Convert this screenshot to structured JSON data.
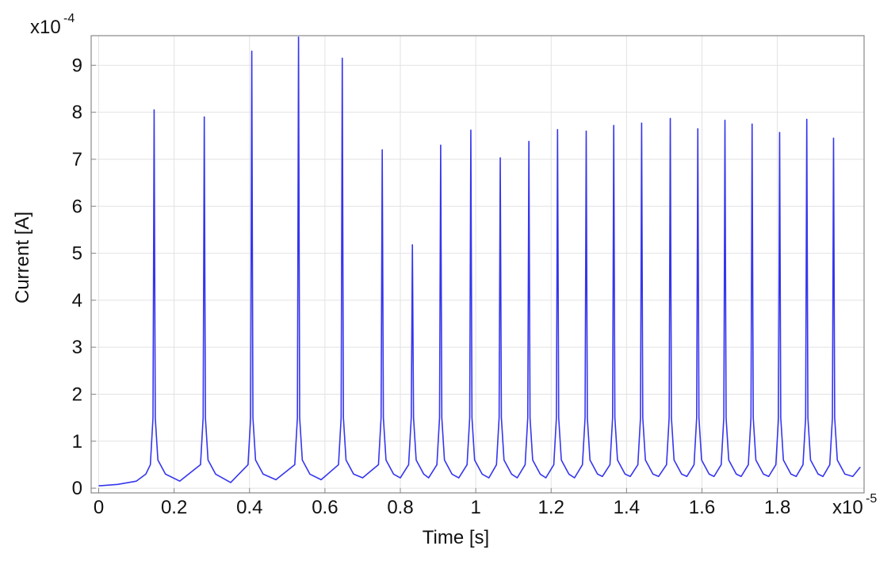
{
  "chart_data": {
    "type": "line",
    "x_label": "Time [s]",
    "y_label": "Current [A]",
    "x_multiplier": "x10",
    "x_exponent": "-5",
    "y_multiplier": "x10",
    "y_exponent": "-4",
    "xlim": [
      -0.02,
      2.03
    ],
    "ylim": [
      -0.1,
      9.63
    ],
    "xticks": [
      0,
      0.2,
      0.4,
      0.6,
      0.8,
      1,
      1.2,
      1.4,
      1.6,
      1.8
    ],
    "yticks": [
      0,
      1,
      2,
      3,
      4,
      5,
      6,
      7,
      8,
      9
    ],
    "grid": true,
    "series": [
      {
        "color": "#3535ee",
        "x": [
          0,
          0.05,
          0.1,
          0.125,
          0.137,
          0.144,
          0.147,
          0.15,
          0.157,
          0.177,
          0.215,
          0.27,
          0.277,
          0.28,
          0.283,
          0.29,
          0.31,
          0.35,
          0.396,
          0.403,
          0.406,
          0.409,
          0.416,
          0.436,
          0.47,
          0.52,
          0.527,
          0.53,
          0.533,
          0.54,
          0.56,
          0.59,
          0.636,
          0.643,
          0.646,
          0.649,
          0.656,
          0.676,
          0.7,
          0.742,
          0.749,
          0.752,
          0.755,
          0.762,
          0.782,
          0.8,
          0.822,
          0.829,
          0.832,
          0.835,
          0.842,
          0.862,
          0.875,
          0.897,
          0.904,
          0.907,
          0.91,
          0.917,
          0.937,
          0.955,
          0.977,
          0.984,
          0.987,
          0.99,
          0.997,
          1.017,
          1.035,
          1.055,
          1.062,
          1.065,
          1.068,
          1.075,
          1.095,
          1.11,
          1.131,
          1.138,
          1.141,
          1.144,
          1.151,
          1.171,
          1.186,
          1.207,
          1.214,
          1.217,
          1.22,
          1.227,
          1.247,
          1.262,
          1.283,
          1.29,
          1.293,
          1.296,
          1.303,
          1.323,
          1.336,
          1.356,
          1.363,
          1.366,
          1.369,
          1.376,
          1.396,
          1.41,
          1.43,
          1.437,
          1.44,
          1.443,
          1.45,
          1.47,
          1.485,
          1.506,
          1.513,
          1.516,
          1.519,
          1.526,
          1.546,
          1.56,
          1.579,
          1.586,
          1.589,
          1.592,
          1.599,
          1.619,
          1.632,
          1.651,
          1.658,
          1.661,
          1.664,
          1.671,
          1.691,
          1.704,
          1.723,
          1.73,
          1.733,
          1.736,
          1.743,
          1.763,
          1.777,
          1.796,
          1.803,
          1.806,
          1.809,
          1.816,
          1.836,
          1.85,
          1.868,
          1.875,
          1.878,
          1.881,
          1.888,
          1.908,
          1.921,
          1.939,
          1.946,
          1.949,
          1.952,
          1.959,
          1.979,
          2.0,
          2.02
        ],
        "values": [
          0.05,
          0.08,
          0.15,
          0.3,
          0.5,
          1.5,
          8.05,
          1.5,
          0.6,
          0.3,
          0.15,
          0.5,
          1.5,
          7.9,
          1.5,
          0.6,
          0.3,
          0.12,
          0.5,
          1.5,
          9.3,
          1.5,
          0.6,
          0.3,
          0.18,
          0.5,
          1.5,
          9.6,
          1.5,
          0.6,
          0.3,
          0.18,
          0.5,
          1.5,
          9.15,
          1.5,
          0.6,
          0.3,
          0.22,
          0.5,
          1.5,
          7.2,
          1.5,
          0.6,
          0.3,
          0.22,
          0.5,
          1.5,
          5.18,
          1.5,
          0.6,
          0.3,
          0.22,
          0.5,
          1.5,
          7.3,
          1.5,
          0.6,
          0.3,
          0.22,
          0.5,
          1.5,
          7.62,
          1.5,
          0.6,
          0.3,
          0.22,
          0.5,
          1.5,
          7.03,
          1.5,
          0.6,
          0.3,
          0.22,
          0.5,
          1.5,
          7.38,
          1.5,
          0.6,
          0.3,
          0.22,
          0.5,
          1.5,
          7.63,
          1.5,
          0.6,
          0.3,
          0.22,
          0.5,
          1.5,
          7.6,
          1.5,
          0.6,
          0.3,
          0.25,
          0.5,
          1.5,
          7.72,
          1.5,
          0.6,
          0.3,
          0.25,
          0.5,
          1.5,
          7.77,
          1.5,
          0.6,
          0.3,
          0.25,
          0.5,
          1.5,
          7.87,
          1.5,
          0.6,
          0.3,
          0.25,
          0.5,
          1.5,
          7.65,
          1.5,
          0.6,
          0.3,
          0.25,
          0.5,
          1.5,
          7.83,
          1.5,
          0.6,
          0.3,
          0.25,
          0.5,
          1.5,
          7.75,
          1.5,
          0.6,
          0.3,
          0.25,
          0.5,
          1.5,
          7.57,
          1.5,
          0.6,
          0.3,
          0.25,
          0.5,
          1.5,
          7.85,
          1.5,
          0.6,
          0.3,
          0.25,
          0.5,
          1.5,
          7.45,
          1.5,
          0.6,
          0.3,
          0.25,
          0.45
        ]
      }
    ]
  }
}
